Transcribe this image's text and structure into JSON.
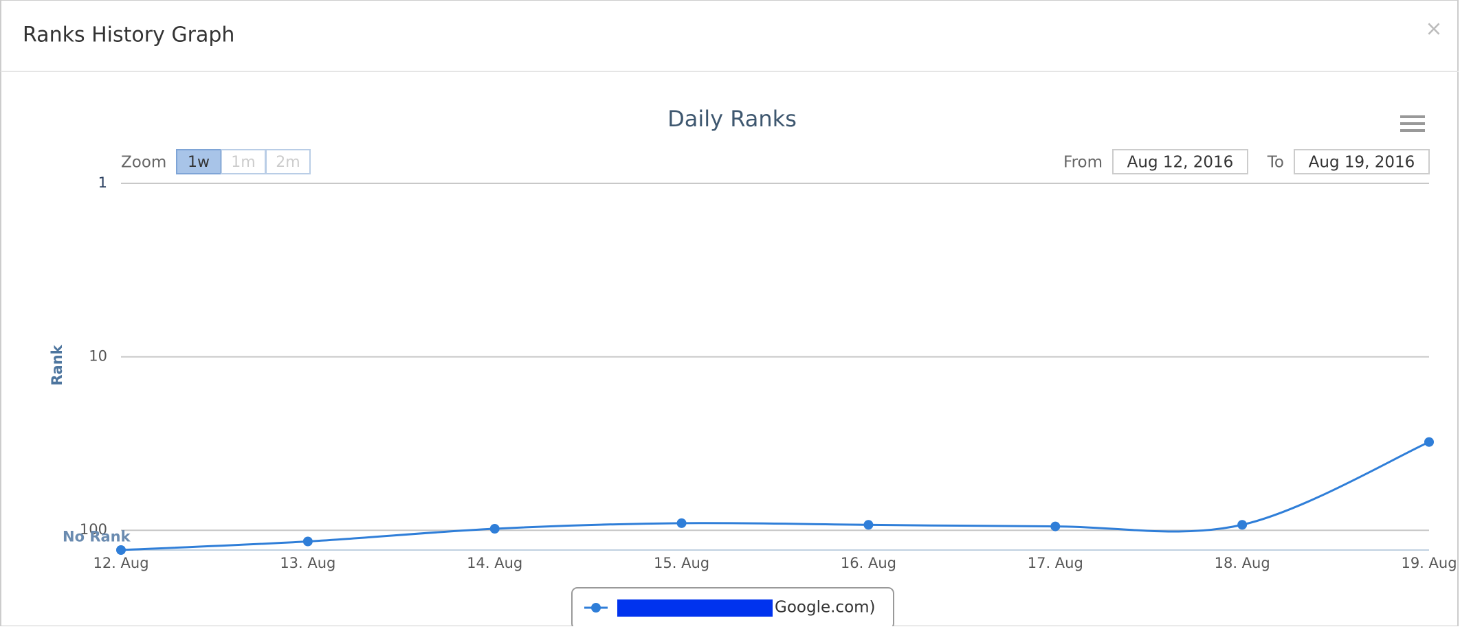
{
  "header": {
    "title": "Ranks History Graph",
    "close": "×"
  },
  "chart_data": {
    "type": "line",
    "title": "Daily Ranks",
    "y_label": "Rank",
    "categories": [
      "12. Aug",
      "13. Aug",
      "14. Aug",
      "15. Aug",
      "16. Aug",
      "17. Aug",
      "18. Aug",
      "19. Aug"
    ],
    "series": [
      {
        "name": "Google.com)",
        "color": "#2f7ed8",
        "values": [
          130,
          116,
          98,
          91,
          93,
          95,
          93,
          31
        ]
      }
    ],
    "ylim": [
      1,
      130
    ],
    "yticks": [
      1,
      10,
      100,
      {
        "value": 110,
        "label": "No Rank"
      }
    ],
    "log_scale": true,
    "reversed": true,
    "grid": true,
    "range_selector": {
      "zoom_label": "Zoom",
      "buttons": [
        "1w",
        "1m",
        "2m"
      ],
      "from_label": "From",
      "from": "Aug 12, 2016",
      "to_label": "To",
      "to": "Aug 19, 2016"
    }
  }
}
